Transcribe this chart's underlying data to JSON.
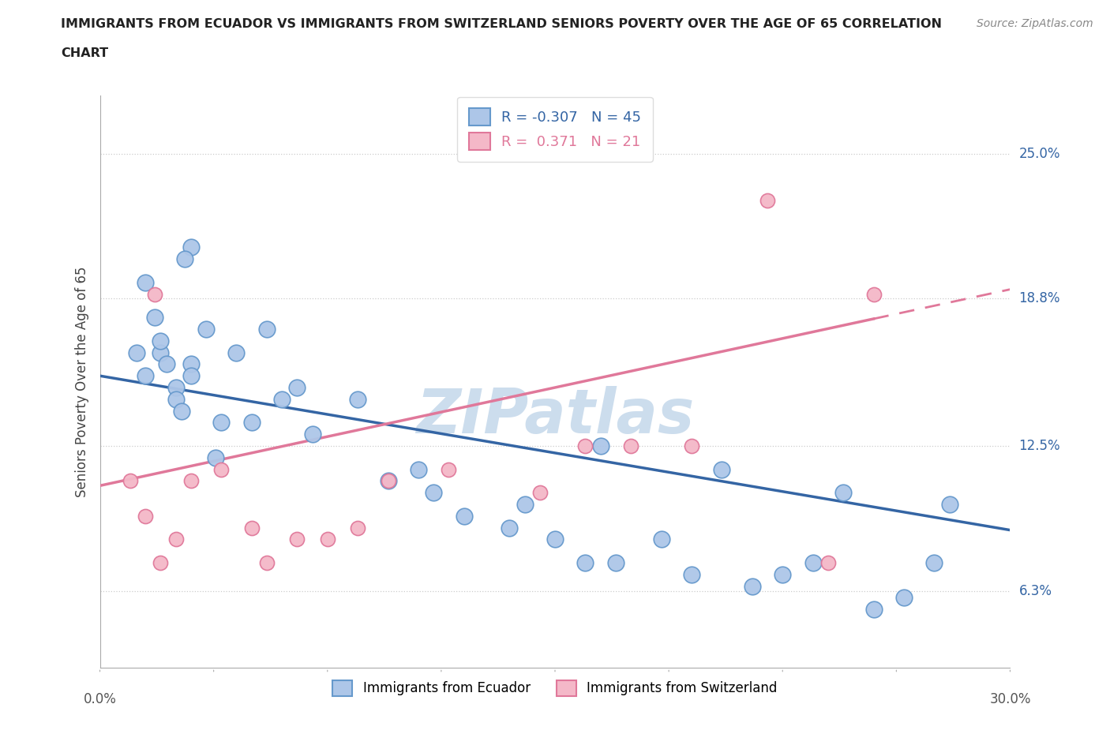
{
  "title_line1": "IMMIGRANTS FROM ECUADOR VS IMMIGRANTS FROM SWITZERLAND SENIORS POVERTY OVER THE AGE OF 65 CORRELATION",
  "title_line2": "CHART",
  "source": "Source: ZipAtlas.com",
  "ylabel": "Seniors Poverty Over the Age of 65",
  "ytick_labels": [
    "6.3%",
    "12.5%",
    "18.8%",
    "25.0%"
  ],
  "ytick_values": [
    6.3,
    12.5,
    18.8,
    25.0
  ],
  "xmin": 0.0,
  "xmax": 30.0,
  "ymin": 3.0,
  "ymax": 27.5,
  "ecuador_color": "#adc6e8",
  "ecuador_edge": "#6699cc",
  "switzerland_color": "#f4b8c8",
  "switzerland_edge": "#e0789a",
  "ecuador_line_color": "#3465a4",
  "switzerland_line_color": "#e0789a",
  "watermark": "ZIPatlas",
  "watermark_color": "#ccdded",
  "ecuador_x": [
    3.0,
    1.5,
    2.0,
    2.5,
    3.5,
    3.0,
    2.8,
    2.2,
    2.0,
    1.8,
    1.5,
    1.2,
    2.5,
    3.0,
    4.5,
    5.5,
    6.0,
    8.5,
    11.0,
    12.0,
    13.5,
    15.0,
    16.5,
    17.0,
    18.5,
    19.5,
    20.5,
    21.5,
    22.5,
    23.5,
    4.0,
    7.0,
    9.5,
    14.0,
    16.0,
    24.5,
    25.5,
    26.5,
    27.5,
    28.0,
    5.0,
    2.7,
    3.8,
    6.5,
    10.5
  ],
  "ecuador_y": [
    16.0,
    15.5,
    16.5,
    15.0,
    17.5,
    21.0,
    20.5,
    16.0,
    17.0,
    18.0,
    19.5,
    16.5,
    14.5,
    15.5,
    16.5,
    17.5,
    14.5,
    14.5,
    10.5,
    9.5,
    9.0,
    8.5,
    12.5,
    7.5,
    8.5,
    7.0,
    11.5,
    6.5,
    7.0,
    7.5,
    13.5,
    13.0,
    11.0,
    10.0,
    7.5,
    10.5,
    5.5,
    6.0,
    7.5,
    10.0,
    13.5,
    14.0,
    12.0,
    15.0,
    11.5
  ],
  "switzerland_x": [
    1.0,
    1.5,
    2.0,
    2.5,
    3.0,
    4.0,
    5.0,
    5.5,
    6.5,
    7.5,
    8.5,
    9.5,
    11.5,
    14.5,
    16.0,
    17.5,
    19.5,
    22.0,
    24.0,
    25.5,
    1.8
  ],
  "switzerland_y": [
    11.0,
    9.5,
    7.5,
    8.5,
    11.0,
    11.5,
    9.0,
    7.5,
    8.5,
    8.5,
    9.0,
    11.0,
    11.5,
    10.5,
    12.5,
    12.5,
    12.5,
    23.0,
    7.5,
    19.0,
    19.0
  ],
  "ec_slope": -0.22,
  "ec_intercept": 15.5,
  "sw_slope": 0.28,
  "sw_intercept": 10.8
}
